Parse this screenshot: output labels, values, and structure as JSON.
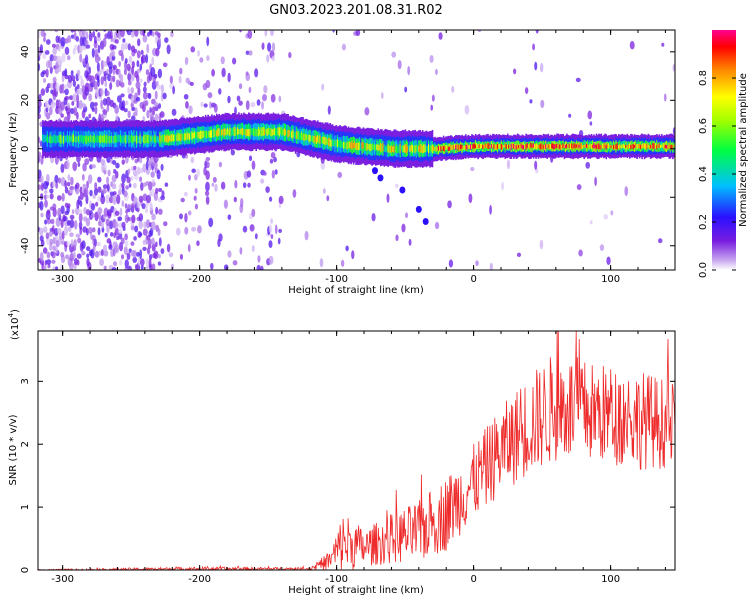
{
  "figure_title": "GN03.2023.201.08.31.R02",
  "chart_data": [
    {
      "type": "heatmap",
      "xlabel": "Height of straight line (km)",
      "ylabel": "Frequency (Hz)",
      "xlim": [
        -318,
        147
      ],
      "ylim": [
        -50,
        49
      ],
      "xticks": [
        -300,
        -200,
        -100,
        0,
        100
      ],
      "yticks": [
        -40,
        -20,
        0,
        20,
        40
      ],
      "colorbar": {
        "label": "Normalized spectral amplitude",
        "ticks": [
          0.0,
          0.2,
          0.4,
          0.6,
          0.8
        ],
        "colormap": "rainbow",
        "range": [
          0,
          1
        ]
      },
      "ridge": {
        "description_points": [
          {
            "x": -310,
            "y": 4
          },
          {
            "x": -230,
            "y": 4
          },
          {
            "x": -180,
            "y": 7
          },
          {
            "x": -140,
            "y": 7
          },
          {
            "x": -100,
            "y": 2
          },
          {
            "x": -60,
            "y": 0
          },
          {
            "x": -30,
            "y": 0
          },
          {
            "x": 0,
            "y": 1
          },
          {
            "x": 50,
            "y": 1
          },
          {
            "x": 147,
            "y": 1
          }
        ]
      }
    },
    {
      "type": "line",
      "xlabel": "Height of straight line (km)",
      "ylabel": "SNR (10 * v/v)",
      "y_multiplier": "(x10",
      "y_multiplier_exp": "4",
      "y_multiplier_close": ")",
      "xlim": [
        -318,
        147
      ],
      "ylim": [
        0,
        3.8
      ],
      "xticks": [
        -300,
        -200,
        -100,
        0,
        100
      ],
      "yticks": [
        0,
        1,
        2,
        3
      ],
      "color": "#ee2a2a",
      "series": [
        {
          "envelope": [
            {
              "x": -318,
              "mean": 0.0,
              "amp": 0.01
            },
            {
              "x": -200,
              "mean": 0.02,
              "amp": 0.03
            },
            {
              "x": -120,
              "mean": 0.02,
              "amp": 0.02
            },
            {
              "x": -105,
              "mean": 0.15,
              "amp": 0.15
            },
            {
              "x": -95,
              "mean": 0.45,
              "amp": 0.5
            },
            {
              "x": -80,
              "mean": 0.35,
              "amp": 0.3
            },
            {
              "x": -60,
              "mean": 0.5,
              "amp": 0.4
            },
            {
              "x": -40,
              "mean": 0.6,
              "amp": 0.5
            },
            {
              "x": -20,
              "mean": 0.9,
              "amp": 0.6
            },
            {
              "x": 0,
              "mean": 1.4,
              "amp": 0.6
            },
            {
              "x": 20,
              "mean": 1.9,
              "amp": 0.7
            },
            {
              "x": 40,
              "mean": 2.3,
              "amp": 0.8
            },
            {
              "x": 60,
              "mean": 2.6,
              "amp": 0.9
            },
            {
              "x": 90,
              "mean": 2.5,
              "amp": 0.8
            },
            {
              "x": 120,
              "mean": 2.4,
              "amp": 0.8
            },
            {
              "x": 147,
              "mean": 2.3,
              "amp": 0.7
            }
          ]
        }
      ]
    }
  ]
}
